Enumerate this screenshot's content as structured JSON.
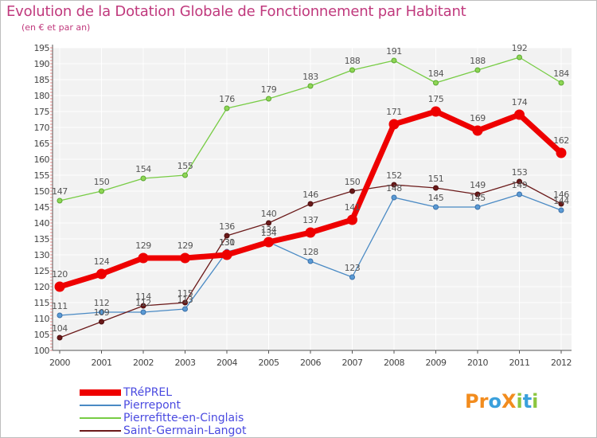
{
  "header": {
    "title": "Evolution de la Dotation Globale de Fonctionnement par Habitant",
    "subtitle": "(en € et par an)"
  },
  "logo": {
    "text": "ProXiti",
    "letters": [
      "P",
      "r",
      "o",
      "X",
      "i",
      "t",
      "i"
    ],
    "colors": [
      "#f28c1e",
      "#f28c1e",
      "#3aa0dc",
      "#f28c1e",
      "#8cc63f",
      "#3aa0dc",
      "#8cc63f"
    ]
  },
  "chart_data": {
    "type": "line",
    "title": "Evolution de la Dotation Globale de Fonctionnement par Habitant",
    "subtitle": "(en € et par an)",
    "x": [
      "2000",
      "2001",
      "2002",
      "2003",
      "2004",
      "2005",
      "2006",
      "2007",
      "2008",
      "2009",
      "2010",
      "2011",
      "2012"
    ],
    "ylim": [
      100,
      195
    ],
    "yticks": [
      100,
      105,
      110,
      115,
      120,
      125,
      130,
      135,
      140,
      145,
      150,
      155,
      160,
      165,
      170,
      175,
      180,
      185,
      190,
      195
    ],
    "grid": true,
    "legend_position": "bottom-left",
    "series": [
      {
        "name": "TRéPREL",
        "color": "#ee0000",
        "values": [
          120,
          124,
          129,
          129,
          130,
          134,
          137,
          141,
          171,
          175,
          169,
          174,
          162
        ],
        "labels": [
          "120",
          "124",
          "129",
          "129",
          "130",
          "134",
          "137",
          "141",
          "171",
          "175",
          "169",
          "174",
          "162"
        ]
      },
      {
        "name": "Pierrepont",
        "color": "#4a8ac4",
        "values": [
          111,
          112,
          112,
          113,
          131,
          134,
          128,
          123,
          148,
          145,
          145,
          149,
          144
        ],
        "labels": [
          "111",
          "112",
          "112",
          "113",
          "131",
          "134",
          "128",
          "123",
          "148",
          "145",
          "145",
          "149",
          "144"
        ]
      },
      {
        "name": "Pierrefitte-en-Cinglais",
        "color": "#77cc44",
        "values": [
          147,
          150,
          154,
          155,
          176,
          179,
          183,
          188,
          191,
          184,
          188,
          192,
          184
        ],
        "labels": [
          "147",
          "150",
          "154",
          "155",
          "176",
          "179",
          "183",
          "188",
          "191",
          "184",
          "188",
          "192",
          "184"
        ]
      },
      {
        "name": "Saint-Germain-Langot",
        "color": "#6b1a1a",
        "values": [
          104,
          109,
          114,
          115,
          136,
          140,
          146,
          150,
          152,
          151,
          149,
          153,
          146
        ],
        "labels": [
          "104",
          "109",
          "114",
          "115",
          "136",
          "140",
          "146",
          "150",
          "152",
          "151",
          "149",
          "153",
          "146"
        ]
      }
    ]
  }
}
